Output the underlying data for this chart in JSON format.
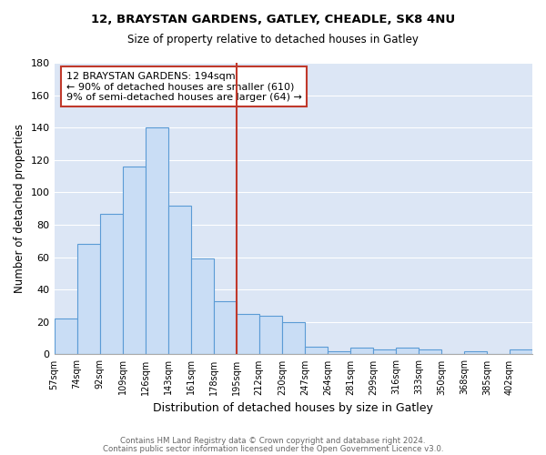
{
  "title1": "12, BRAYSTAN GARDENS, GATLEY, CHEADLE, SK8 4NU",
  "title2": "Size of property relative to detached houses in Gatley",
  "xlabel": "Distribution of detached houses by size in Gatley",
  "ylabel": "Number of detached properties",
  "bar_labels": [
    "57sqm",
    "74sqm",
    "92sqm",
    "109sqm",
    "126sqm",
    "143sqm",
    "161sqm",
    "178sqm",
    "195sqm",
    "212sqm",
    "230sqm",
    "247sqm",
    "264sqm",
    "281sqm",
    "299sqm",
    "316sqm",
    "333sqm",
    "350sqm",
    "368sqm",
    "385sqm",
    "402sqm"
  ],
  "bar_values": [
    22,
    68,
    87,
    116,
    140,
    92,
    59,
    33,
    25,
    24,
    20,
    5,
    2,
    4,
    3,
    4,
    3,
    0,
    2,
    0,
    3
  ],
  "bar_color": "#c9ddf5",
  "bar_edge_color": "#5b9bd5",
  "vline_x": 8,
  "vline_color": "#c0392b",
  "annotation_title": "12 BRAYSTAN GARDENS: 194sqm",
  "annotation_line1": "← 90% of detached houses are smaller (610)",
  "annotation_line2": "9% of semi-detached houses are larger (64) →",
  "annotation_box_color": "#ffffff",
  "annotation_box_edge": "#c0392b",
  "ylim": [
    0,
    180
  ],
  "yticks": [
    0,
    20,
    40,
    60,
    80,
    100,
    120,
    140,
    160,
    180
  ],
  "footer1": "Contains HM Land Registry data © Crown copyright and database right 2024.",
  "footer2": "Contains public sector information licensed under the Open Government Licence v3.0.",
  "plot_bg_color": "#dce6f5"
}
